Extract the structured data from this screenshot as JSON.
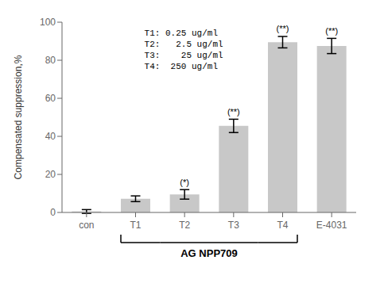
{
  "chart_data": {
    "type": "bar",
    "categories": [
      "con",
      "T1",
      "T2",
      "T3",
      "T4",
      "E-4031"
    ],
    "values": [
      0.5,
      7.2,
      9.5,
      45.5,
      89.5,
      87.5
    ],
    "errors": [
      1.0,
      1.5,
      2.5,
      3.5,
      3.0,
      4.0
    ],
    "color": "#c8c8c8",
    "ylim": [
      0,
      100
    ],
    "yticks": [
      0,
      20,
      40,
      60,
      80,
      100
    ],
    "ylabel": "Compensated suppression,%",
    "xlabel": "AG NPP709",
    "xlabel_categories": [
      "T1",
      "T2",
      "T3",
      "T4"
    ],
    "significance": [
      null,
      null,
      "(*)",
      "(**)",
      "(**)",
      "(**)"
    ],
    "annotations": [
      "T1: 0.25 ug/ml",
      "T2:   2.5 ug/ml",
      "T3:    25 ug/ml",
      "T4:  250 ug/ml"
    ],
    "grid": false
  }
}
